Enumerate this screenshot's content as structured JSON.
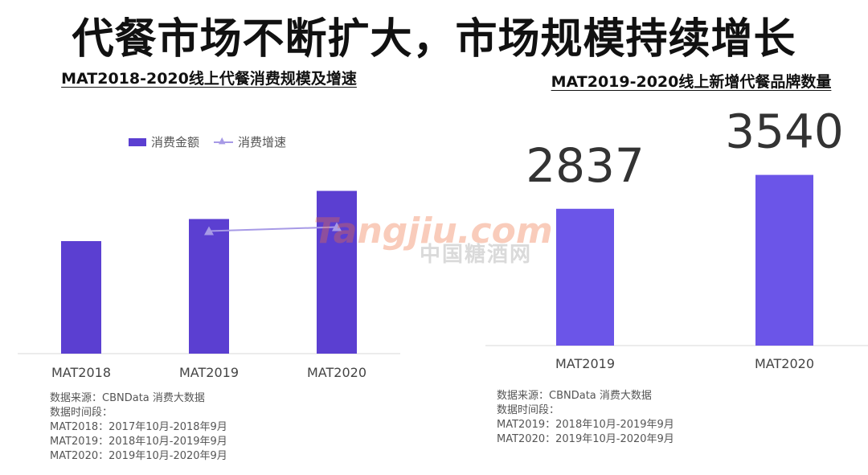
{
  "main_title": "代餐市场不断扩大，市场规模持续增长",
  "watermark": {
    "text_en": "Tangjiu.com",
    "text_cn": "中国糖酒网"
  },
  "left": {
    "title": "MAT2018-2020线上代餐消费规模及增速",
    "legend": {
      "bar": "消费金额",
      "line": "消费增速"
    },
    "source": [
      "数据来源：CBNData 消费大数据",
      "数据时间段：",
      "MAT2018：2017年10月-2018年9月",
      "MAT2019：2018年10月-2019年9月",
      "MAT2020：2019年10月-2020年9月"
    ]
  },
  "right": {
    "title": "MAT2019-2020线上新增代餐品牌数量",
    "source": [
      "数据来源：CBNData 消费大数据",
      "数据时间段：",
      "MAT2019：2018年10月-2019年9月",
      "MAT2020：2019年10月-2020年9月"
    ]
  },
  "chart_data": [
    {
      "type": "bar",
      "title": "MAT2018-2020线上代餐消费规模及增速",
      "categories": [
        "MAT2018",
        "MAT2019",
        "MAT2020"
      ],
      "series": [
        {
          "name": "消费金额",
          "type": "bar",
          "values": [
            0.56,
            0.67,
            0.81
          ]
        },
        {
          "name": "消费增速",
          "type": "line",
          "values": [
            null,
            0.61,
            0.63
          ]
        }
      ],
      "colors": {
        "bar": "#5b3fd1",
        "line": "#a79ae6"
      },
      "grid": false,
      "legend": "top"
    },
    {
      "type": "bar",
      "title": "MAT2019-2020线上新增代餐品牌数量",
      "categories": [
        "MAT2019",
        "MAT2020"
      ],
      "values": [
        2837,
        3540
      ],
      "colors": {
        "bar": "#6b55e8"
      },
      "grid": false
    }
  ]
}
